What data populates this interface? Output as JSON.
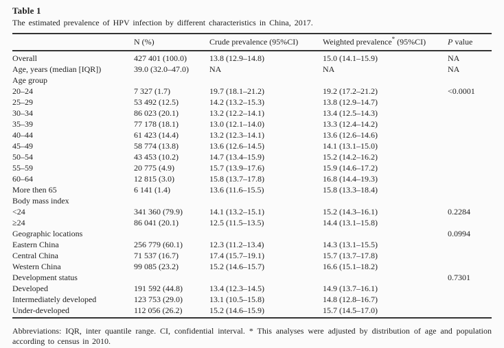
{
  "page": {
    "title": "Table 1",
    "caption": "The estimated prevalence of HPV infection by different characteristics in China, 2017."
  },
  "table": {
    "headers": {
      "label": "",
      "n": "N (%)",
      "crude": "Crude prevalence (95%CI)",
      "weighted_text": "Weighted prevalence",
      "weighted_sup": "*",
      "weighted_ci": " (95%CI)",
      "p_italic": "P",
      "p_rest": " value"
    },
    "rows": [
      {
        "label": "Overall",
        "n": "427 401 (100.0)",
        "crude": "13.8 (12.9–14.8)",
        "weighted": "15.0 (14.1–15.9)",
        "p": "NA"
      },
      {
        "label": "Age, years (median [IQR])",
        "n": "39.0 (32.0–47.0)",
        "crude": "NA",
        "weighted": "NA",
        "p": "NA"
      },
      {
        "label": "Age group",
        "n": "",
        "crude": "",
        "weighted": "",
        "p": ""
      },
      {
        "label": "20–24",
        "n": "7 327 (1.7)",
        "crude": "19.7 (18.1–21.2)",
        "weighted": "19.2 (17.2–21.2)",
        "p": "<0.0001"
      },
      {
        "label": "25–29",
        "n": "53 492 (12.5)",
        "crude": "14.2 (13.2–15.3)",
        "weighted": "13.8 (12.9–14.7)",
        "p": ""
      },
      {
        "label": "30–34",
        "n": "86 023 (20.1)",
        "crude": "13.2 (12.2–14.1)",
        "weighted": "13.4 (12.5–14.3)",
        "p": ""
      },
      {
        "label": "35–39",
        "n": "77 178 (18.1)",
        "crude": "13.0 (12.1–14.0)",
        "weighted": "13.3 (12.4–14.2)",
        "p": ""
      },
      {
        "label": "40–44",
        "n": "61 423 (14.4)",
        "crude": "13.2 (12.3–14.1)",
        "weighted": "13.6 (12.6–14.6)",
        "p": ""
      },
      {
        "label": "45–49",
        "n": "58 774 (13.8)",
        "crude": "13.6 (12.6–14.5)",
        "weighted": "14.1 (13.1–15.0)",
        "p": ""
      },
      {
        "label": "50–54",
        "n": "43 453 (10.2)",
        "crude": "14.7 (13.4–15.9)",
        "weighted": "15.2 (14.2–16.2)",
        "p": ""
      },
      {
        "label": "55–59",
        "n": "20 775 (4.9)",
        "crude": "15.7 (13.9–17.6)",
        "weighted": "15.9 (14.6–17.2)",
        "p": ""
      },
      {
        "label": "60–64",
        "n": "12 815 (3.0)",
        "crude": "15.8 (13.7–17.8)",
        "weighted": "16.8 (14.4–19.3)",
        "p": ""
      },
      {
        "label": "More then 65",
        "n": "6 141 (1.4)",
        "crude": "13.6 (11.6–15.5)",
        "weighted": "15.8 (13.3–18.4)",
        "p": ""
      },
      {
        "label": "Body mass index",
        "n": "",
        "crude": "",
        "weighted": "",
        "p": ""
      },
      {
        "label": "<24",
        "n": "341 360 (79.9)",
        "crude": "14.1 (13.2–15.1)",
        "weighted": "15.2 (14.3–16.1)",
        "p": "0.2284"
      },
      {
        "label": "≥24",
        "n": "86 041 (20.1)",
        "crude": "12.5 (11.5–13.5)",
        "weighted": "14.4 (13.1–15.8)",
        "p": ""
      },
      {
        "label": "Geographic locations",
        "n": "",
        "crude": "",
        "weighted": "",
        "p": "0.0994"
      },
      {
        "label": "Eastern China",
        "n": "256 779 (60.1)",
        "crude": "12.3 (11.2–13.4)",
        "weighted": "14.3 (13.1–15.5)",
        "p": ""
      },
      {
        "label": "Central China",
        "n": "71 537 (16.7)",
        "crude": "17.4 (15.7–19.1)",
        "weighted": "15.7 (13.7–17.8)",
        "p": ""
      },
      {
        "label": "Western China",
        "n": "99 085 (23.2)",
        "crude": "15.2 (14.6–15.7)",
        "weighted": "16.6 (15.1–18.2)",
        "p": ""
      },
      {
        "label": "Development status",
        "n": "",
        "crude": "",
        "weighted": "",
        "p": "0.7301"
      },
      {
        "label": "Developed",
        "n": "191 592 (44.8)",
        "crude": "13.4 (12.3–14.5)",
        "weighted": "14.9 (13.7–16.1)",
        "p": ""
      },
      {
        "label": "Intermediately developed",
        "n": "123 753 (29.0)",
        "crude": "13.1 (10.5–15.8)",
        "weighted": "14.8 (12.8–16.7)",
        "p": ""
      },
      {
        "label": "Under-developed",
        "n": "112 056 (26.2)",
        "crude": "15.2 (14.6–15.9)",
        "weighted": "15.7 (14.5–17.0)",
        "p": ""
      }
    ],
    "footnote": "Abbreviations: IQR, inter quantile range. CI, confidential interval. * This analyses were adjusted by distribution of age and population according to census in 2010."
  }
}
